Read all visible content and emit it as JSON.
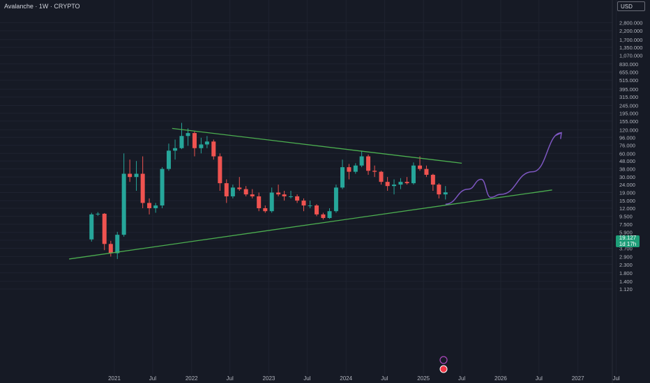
{
  "header": {
    "title": "Avalanche · 1W · CRYPTO",
    "currency": "USD"
  },
  "price_tag": {
    "price": "19.127",
    "countdown": "1d 17h"
  },
  "chart_data": {
    "type": "candlestick",
    "title": "Avalanche · 1W · CRYPTO",
    "y_scale": "log",
    "y_ticks": [
      "2,800.000",
      "2,200.000",
      "1,700.000",
      "1,350.000",
      "1,070.000",
      "830.000",
      "655.000",
      "515.000",
      "395.000",
      "315.000",
      "245.000",
      "195.000",
      "155.000",
      "120.000",
      "96.000",
      "76.000",
      "60.000",
      "48.000",
      "38.000",
      "30.000",
      "24.000",
      "19.000",
      "15.000",
      "12.000",
      "9.500",
      "7.500",
      "5.900",
      "4.700",
      "3.700",
      "2.900",
      "2.300",
      "1.800",
      "1.400",
      "1.120"
    ],
    "x_ticks": [
      "2021",
      "Jul",
      "2022",
      "Jul",
      "2023",
      "Jul",
      "2024",
      "Jul",
      "2025",
      "Jul",
      "2026",
      "Jul",
      "2027",
      "Jul"
    ],
    "series": [
      {
        "values": [
          {
            "t": "2020-09",
            "o": 4.8,
            "h": 10.5,
            "l": 4.5,
            "c": 10.0
          },
          {
            "t": "2020-10",
            "o": 10.0,
            "h": 10.7,
            "l": 9.6,
            "c": 10.2
          },
          {
            "t": "2020-11",
            "o": 10.2,
            "h": 10.4,
            "l": 3.5,
            "c": 4.2
          },
          {
            "t": "2020-12",
            "o": 4.2,
            "h": 4.6,
            "l": 2.9,
            "c": 3.2
          },
          {
            "t": "2021-01",
            "o": 3.2,
            "h": 6.0,
            "l": 2.7,
            "c": 5.5
          },
          {
            "t": "2021-02",
            "o": 5.5,
            "h": 60.0,
            "l": 5.2,
            "c": 33.0
          },
          {
            "t": "2021-03",
            "o": 33.0,
            "h": 50.0,
            "l": 26.0,
            "c": 30.0
          },
          {
            "t": "2021-04",
            "o": 30.0,
            "h": 48.0,
            "l": 20.0,
            "c": 33.0
          },
          {
            "t": "2021-05",
            "o": 33.0,
            "h": 55.0,
            "l": 12.0,
            "c": 14.0
          },
          {
            "t": "2021-06",
            "o": 14.0,
            "h": 16.0,
            "l": 10.0,
            "c": 12.0
          },
          {
            "t": "2021-07",
            "o": 12.0,
            "h": 14.0,
            "l": 10.5,
            "c": 13.0
          },
          {
            "t": "2021-08",
            "o": 13.0,
            "h": 40.0,
            "l": 12.0,
            "c": 38.0
          },
          {
            "t": "2021-09",
            "o": 38.0,
            "h": 80.0,
            "l": 36.0,
            "c": 65.0
          },
          {
            "t": "2021-10",
            "o": 65.0,
            "h": 90.0,
            "l": 50.0,
            "c": 70.0
          },
          {
            "t": "2021-11",
            "o": 70.0,
            "h": 147.0,
            "l": 68.0,
            "c": 100.0
          },
          {
            "t": "2021-12",
            "o": 100.0,
            "h": 125.0,
            "l": 75.0,
            "c": 109.0
          },
          {
            "t": "2022-01",
            "o": 109.0,
            "h": 115.0,
            "l": 55.0,
            "c": 70.0
          },
          {
            "t": "2022-02",
            "o": 70.0,
            "h": 95.0,
            "l": 60.0,
            "c": 78.0
          },
          {
            "t": "2022-03",
            "o": 78.0,
            "h": 100.0,
            "l": 70.0,
            "c": 85.0
          },
          {
            "t": "2022-04",
            "o": 85.0,
            "h": 90.0,
            "l": 50.0,
            "c": 55.0
          },
          {
            "t": "2022-05",
            "o": 55.0,
            "h": 60.0,
            "l": 20.0,
            "c": 25.0
          },
          {
            "t": "2022-06",
            "o": 25.0,
            "h": 28.0,
            "l": 14.0,
            "c": 17.0
          },
          {
            "t": "2022-07",
            "o": 17.0,
            "h": 24.0,
            "l": 16.0,
            "c": 22.0
          },
          {
            "t": "2022-08",
            "o": 22.0,
            "h": 30.0,
            "l": 20.0,
            "c": 21.0
          },
          {
            "t": "2022-09",
            "o": 21.0,
            "h": 23.0,
            "l": 17.0,
            "c": 18.0
          },
          {
            "t": "2022-10",
            "o": 18.0,
            "h": 21.0,
            "l": 16.0,
            "c": 17.0
          },
          {
            "t": "2022-11",
            "o": 17.0,
            "h": 19.0,
            "l": 11.0,
            "c": 12.0
          },
          {
            "t": "2022-12",
            "o": 12.0,
            "h": 13.0,
            "l": 10.5,
            "c": 11.0
          },
          {
            "t": "2023-01",
            "o": 11.0,
            "h": 22.0,
            "l": 10.5,
            "c": 19.0
          },
          {
            "t": "2023-02",
            "o": 19.0,
            "h": 24.0,
            "l": 17.0,
            "c": 18.0
          },
          {
            "t": "2023-03",
            "o": 18.0,
            "h": 20.0,
            "l": 15.0,
            "c": 17.0
          },
          {
            "t": "2023-04",
            "o": 17.0,
            "h": 20.0,
            "l": 16.0,
            "c": 17.0
          },
          {
            "t": "2023-05",
            "o": 17.0,
            "h": 18.0,
            "l": 14.0,
            "c": 15.0
          },
          {
            "t": "2023-06",
            "o": 15.0,
            "h": 16.0,
            "l": 11.0,
            "c": 13.0
          },
          {
            "t": "2023-07",
            "o": 13.0,
            "h": 15.0,
            "l": 12.0,
            "c": 13.0
          },
          {
            "t": "2023-08",
            "o": 13.0,
            "h": 13.5,
            "l": 9.5,
            "c": 10.0
          },
          {
            "t": "2023-09",
            "o": 10.0,
            "h": 10.5,
            "l": 8.6,
            "c": 9.0
          },
          {
            "t": "2023-10",
            "o": 9.0,
            "h": 12.0,
            "l": 8.8,
            "c": 11.0
          },
          {
            "t": "2023-11",
            "o": 11.0,
            "h": 24.0,
            "l": 10.5,
            "c": 22.0
          },
          {
            "t": "2023-12",
            "o": 22.0,
            "h": 50.0,
            "l": 21.0,
            "c": 40.0
          },
          {
            "t": "2024-01",
            "o": 40.0,
            "h": 44.0,
            "l": 28.0,
            "c": 35.0
          },
          {
            "t": "2024-02",
            "o": 35.0,
            "h": 45.0,
            "l": 33.0,
            "c": 42.0
          },
          {
            "t": "2024-03",
            "o": 42.0,
            "h": 65.0,
            "l": 40.0,
            "c": 55.0
          },
          {
            "t": "2024-04",
            "o": 55.0,
            "h": 58.0,
            "l": 32.0,
            "c": 36.0
          },
          {
            "t": "2024-05",
            "o": 36.0,
            "h": 42.0,
            "l": 30.0,
            "c": 35.0
          },
          {
            "t": "2024-06",
            "o": 35.0,
            "h": 36.0,
            "l": 24.0,
            "c": 26.0
          },
          {
            "t": "2024-07",
            "o": 26.0,
            "h": 30.0,
            "l": 20.0,
            "c": 23.0
          },
          {
            "t": "2024-08",
            "o": 23.0,
            "h": 28.0,
            "l": 18.0,
            "c": 24.0
          },
          {
            "t": "2024-09",
            "o": 24.0,
            "h": 29.0,
            "l": 21.0,
            "c": 26.0
          },
          {
            "t": "2024-10",
            "o": 26.0,
            "h": 30.0,
            "l": 24.0,
            "c": 25.0
          },
          {
            "t": "2024-11",
            "o": 25.0,
            "h": 46.0,
            "l": 24.0,
            "c": 42.0
          },
          {
            "t": "2024-12",
            "o": 42.0,
            "h": 55.0,
            "l": 36.0,
            "c": 38.0
          },
          {
            "t": "2025-01",
            "o": 38.0,
            "h": 42.0,
            "l": 30.0,
            "c": 32.0
          },
          {
            "t": "2025-02",
            "o": 32.0,
            "h": 33.0,
            "l": 20.0,
            "c": 24.0
          },
          {
            "t": "2025-03",
            "o": 24.0,
            "h": 25.0,
            "l": 16.0,
            "c": 18.0
          },
          {
            "t": "2025-04",
            "o": 18.0,
            "h": 23.0,
            "l": 15.5,
            "c": 19.127
          }
        ]
      }
    ],
    "trendlines": [
      {
        "role": "resistance",
        "points": [
          [
            "2021-10-01",
            125.0
          ],
          [
            "2025-07-01",
            45.0
          ]
        ]
      },
      {
        "role": "support",
        "points": [
          [
            "2020-06-01",
            2.7
          ],
          [
            "2026-09-01",
            20.5
          ]
        ]
      }
    ],
    "projection": [
      [
        "2025-04-15",
        13.5
      ],
      [
        "2025-08-01",
        21.0
      ],
      [
        "2025-10-01",
        28.0
      ],
      [
        "2025-11-15",
        16.5
      ],
      [
        "2026-01-01",
        18.0
      ],
      [
        "2026-06-01",
        35.0
      ],
      [
        "2026-10-15",
        110.0
      ]
    ],
    "colors": {
      "up": "#26a69a",
      "down": "#ef5350",
      "trendline": "#4caf50",
      "projection": "#7e57c2",
      "background": "#161a25"
    },
    "grid": true
  }
}
